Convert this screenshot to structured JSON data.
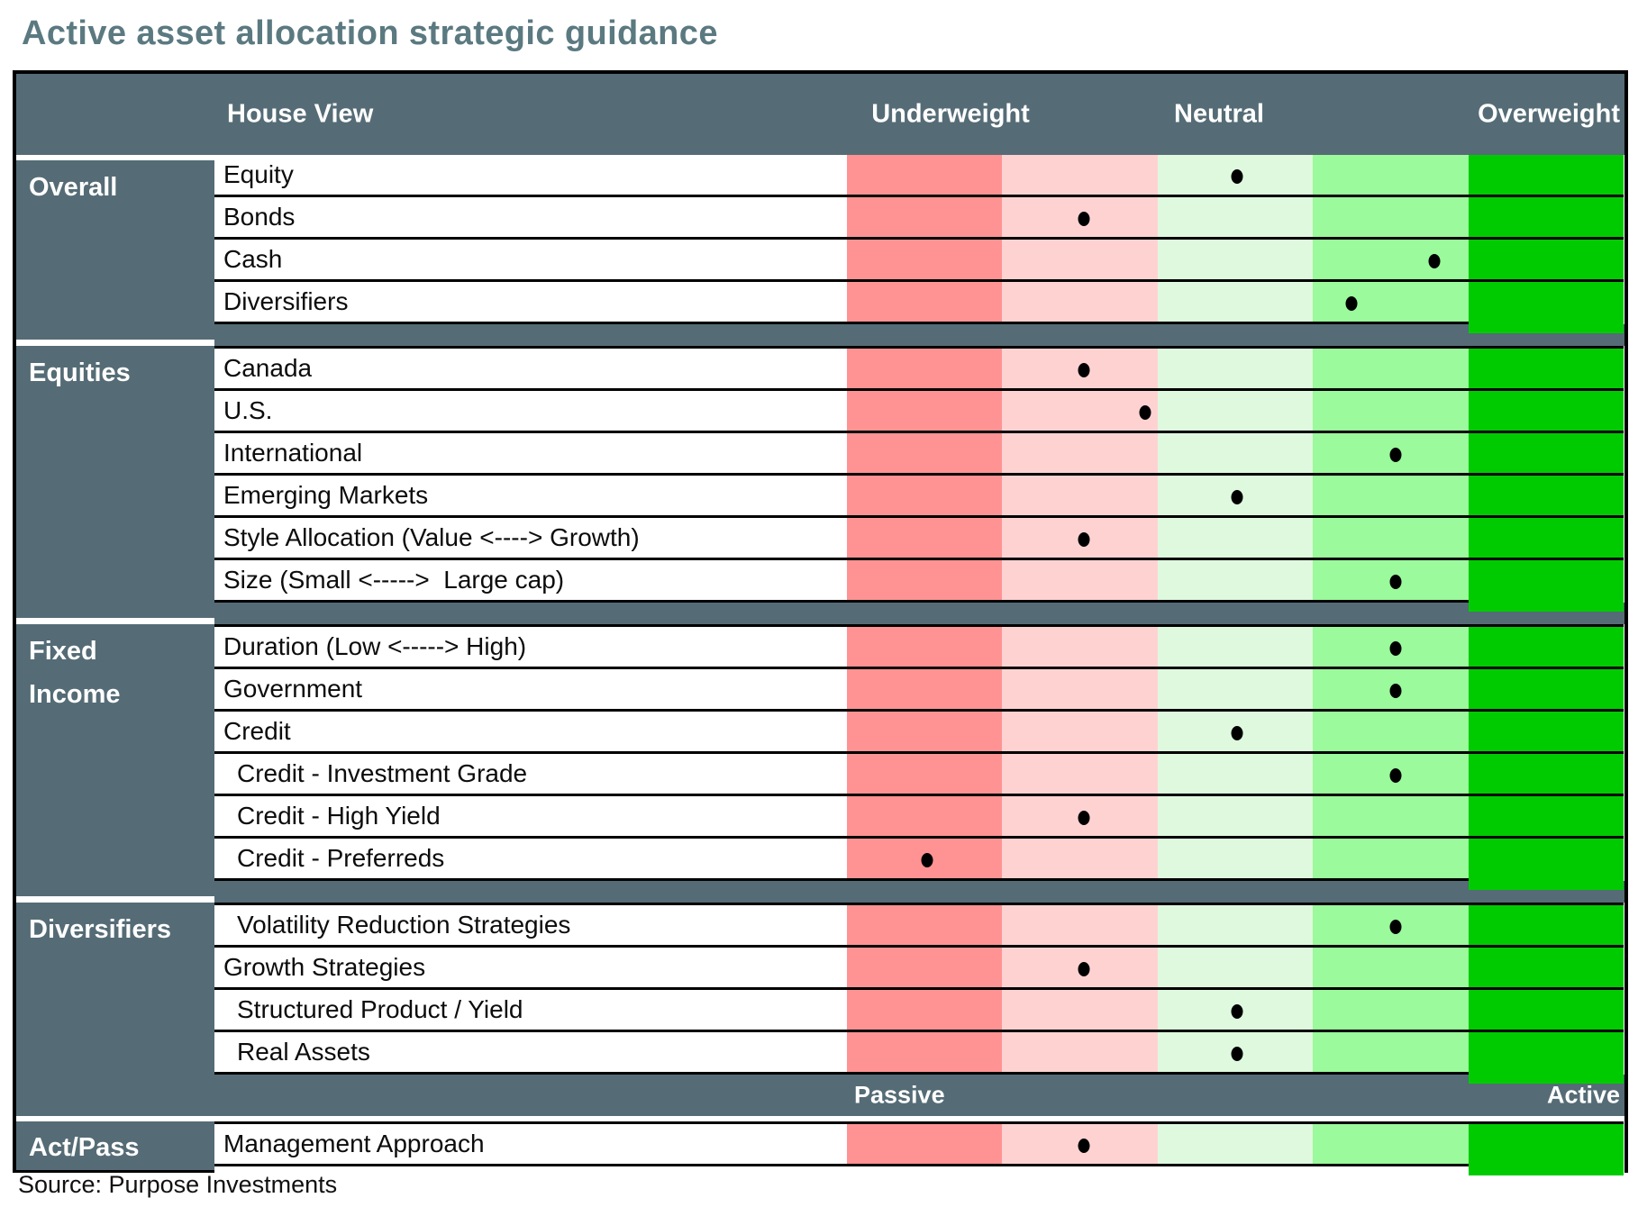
{
  "title": "Active asset allocation strategic guidance",
  "source": "Source: Purpose Investments",
  "header": {
    "house_view": "House View",
    "underweight": "Underweight",
    "neutral": "Neutral",
    "overweight": "Overweight"
  },
  "strip": {
    "passive": "Passive",
    "active": "Active"
  },
  "act_pass": {
    "group_label": "Act/Pass"
  },
  "colors": {
    "slate": "#556c76",
    "title_text": "#5b7980",
    "band_strong_underweight": "#ff9393",
    "band_underweight": "#ffd2d2",
    "band_neutral": "#dff9df",
    "band_overweight": "#9bfa9b",
    "band_strong_overweight": "#00cb00",
    "dot": "#000000"
  },
  "chart_data": {
    "type": "table",
    "title": "Active asset allocation strategic guidance",
    "scale_labels": [
      "Underweight",
      "Neutral",
      "Overweight"
    ],
    "band_names": [
      "strong underweight",
      "underweight",
      "neutral",
      "overweight",
      "strong overweight"
    ],
    "axis_range_pct": [
      0,
      100
    ],
    "groups": [
      "Overall",
      "Equities",
      "Fixed Income",
      "Diversifiers"
    ],
    "group_display": {
      "Fixed Income": "Fixed\nIncome"
    },
    "rows": [
      {
        "group": "Overall",
        "label": "Equity",
        "indent": false,
        "position_pct": 50.2,
        "band": "neutral"
      },
      {
        "group": "Overall",
        "label": "Bonds",
        "indent": false,
        "position_pct": 30.5,
        "band": "underweight"
      },
      {
        "group": "Overall",
        "label": "Cash",
        "indent": false,
        "position_pct": 75.6,
        "band": "overweight"
      },
      {
        "group": "Overall",
        "label": "Diversifiers",
        "indent": false,
        "position_pct": 65.0,
        "band": "overweight"
      },
      {
        "group": "Equities",
        "label": "Canada",
        "indent": false,
        "position_pct": 30.5,
        "band": "underweight"
      },
      {
        "group": "Equities",
        "label": "U.S.",
        "indent": false,
        "position_pct": 38.4,
        "band": "underweight"
      },
      {
        "group": "Equities",
        "label": "International",
        "indent": false,
        "position_pct": 70.6,
        "band": "overweight"
      },
      {
        "group": "Equities",
        "label": "Emerging Markets",
        "indent": false,
        "position_pct": 50.2,
        "band": "neutral"
      },
      {
        "group": "Equities",
        "label": "Style Allocation (Value <----> Growth)",
        "indent": false,
        "position_pct": 30.5,
        "band": "underweight"
      },
      {
        "group": "Equities",
        "label": "Size (Small <----->  Large cap)",
        "indent": false,
        "position_pct": 70.6,
        "band": "overweight"
      },
      {
        "group": "Fixed Income",
        "label": "Duration (Low <-----> High)",
        "indent": false,
        "position_pct": 70.6,
        "band": "overweight"
      },
      {
        "group": "Fixed Income",
        "label": "Government",
        "indent": false,
        "position_pct": 70.6,
        "band": "overweight"
      },
      {
        "group": "Fixed Income",
        "label": "Credit",
        "indent": false,
        "position_pct": 50.2,
        "band": "neutral"
      },
      {
        "group": "Fixed Income",
        "label": "Credit - Investment Grade",
        "indent": true,
        "position_pct": 70.6,
        "band": "overweight"
      },
      {
        "group": "Fixed Income",
        "label": "Credit - High Yield",
        "indent": true,
        "position_pct": 30.5,
        "band": "underweight"
      },
      {
        "group": "Fixed Income",
        "label": "Credit - Preferreds",
        "indent": true,
        "position_pct": 10.3,
        "band": "strong underweight"
      },
      {
        "group": "Diversifiers",
        "label": "Volatility Reduction Strategies",
        "indent": true,
        "position_pct": 70.6,
        "band": "overweight"
      },
      {
        "group": "Diversifiers",
        "label": "Growth Strategies",
        "indent": false,
        "position_pct": 30.5,
        "band": "underweight"
      },
      {
        "group": "Diversifiers",
        "label": "Structured Product / Yield",
        "indent": true,
        "position_pct": 50.2,
        "band": "neutral"
      },
      {
        "group": "Diversifiers",
        "label": "Real Assets",
        "indent": true,
        "position_pct": 50.2,
        "band": "neutral"
      }
    ],
    "act_pass_row": {
      "group": "Act/Pass",
      "label": "Management Approach",
      "position_pct": 30.5,
      "band": "underweight",
      "scale_left": "Passive",
      "scale_right": "Active"
    }
  }
}
